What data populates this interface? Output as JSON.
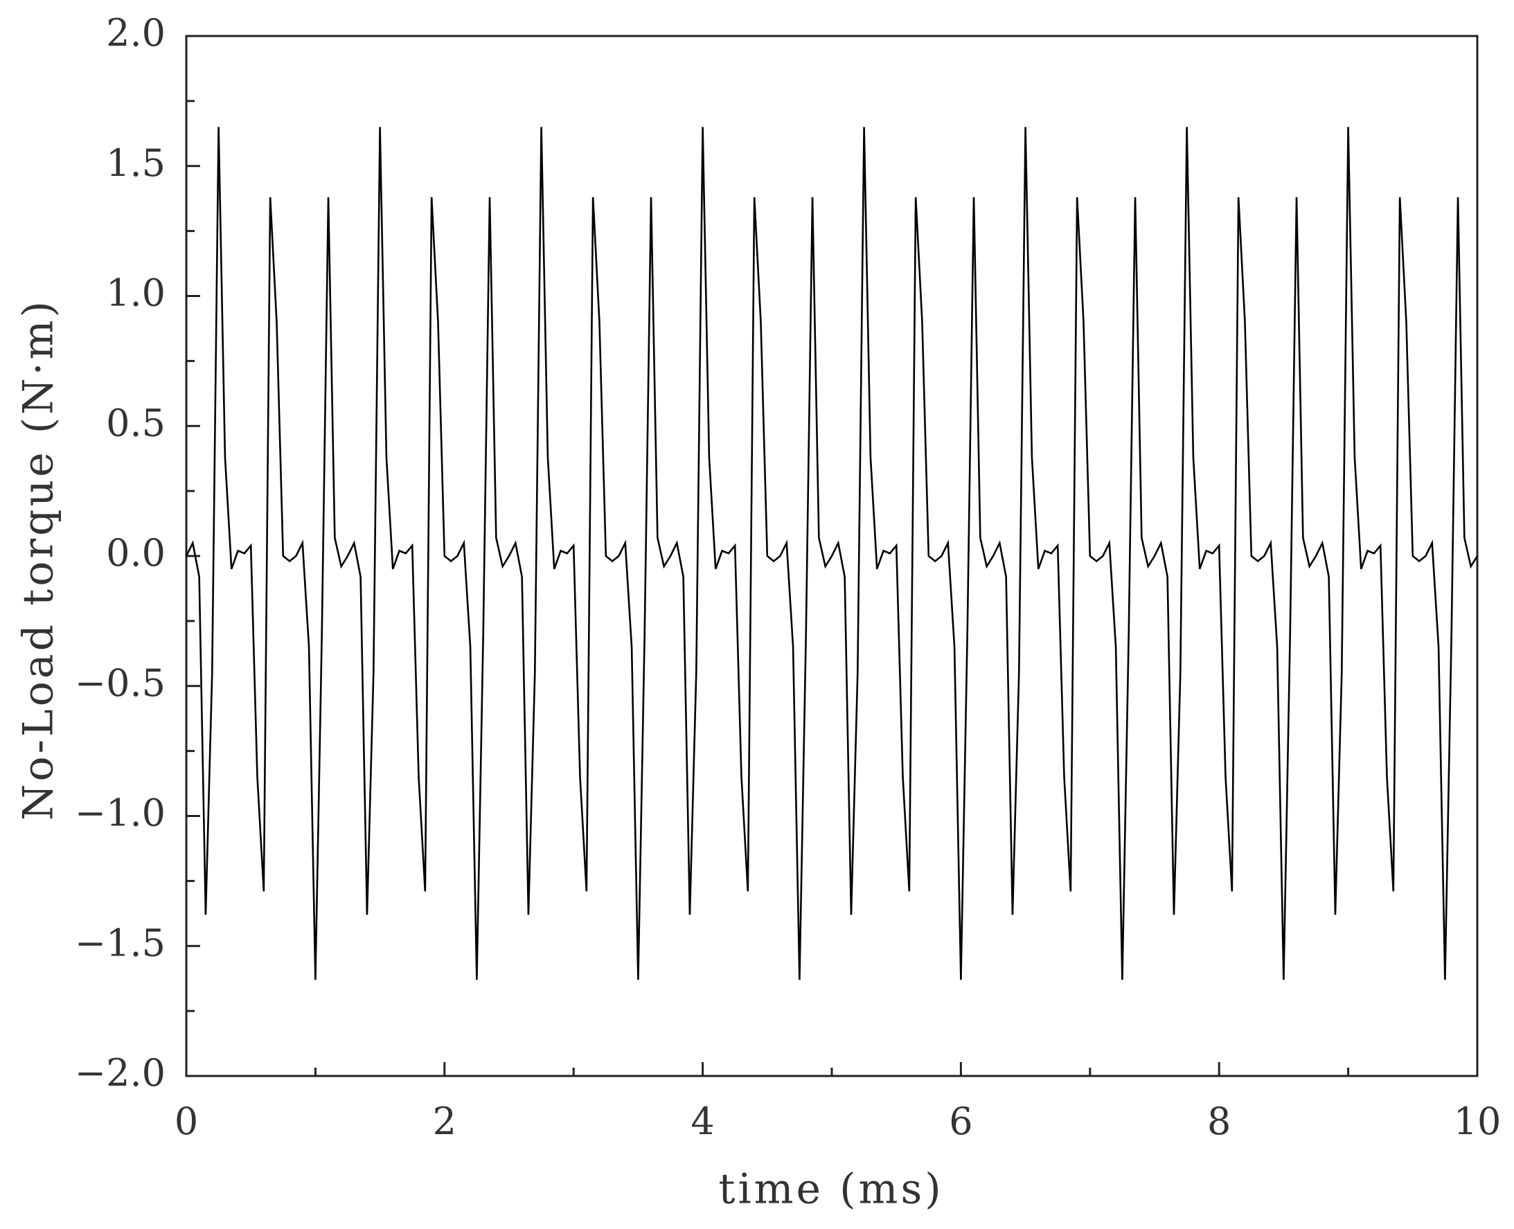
{
  "chart_data": {
    "type": "line",
    "xlabel": "time (ms)",
    "ylabel": "No-Load torque (N·m)",
    "color": "#000000",
    "xlim": [
      0,
      10
    ],
    "ylim": [
      -2.0,
      2.0
    ],
    "xticks": [
      0,
      2,
      4,
      6,
      8,
      10
    ],
    "xminorticks": [
      1,
      3,
      5,
      7,
      9
    ],
    "yticks": [
      {
        "value": -2.0,
        "label": "−2.0"
      },
      {
        "value": -1.5,
        "label": "−1.5"
      },
      {
        "value": -1.0,
        "label": "−1.0"
      },
      {
        "value": -0.5,
        "label": "−0.5"
      },
      {
        "value": 0,
        "label": "0.0"
      },
      {
        "value": 0.5,
        "label": "0.5"
      },
      {
        "value": 1.0,
        "label": "1.0"
      },
      {
        "value": 1.5,
        "label": "1.5"
      },
      {
        "value": 2.0,
        "label": "2.0"
      }
    ],
    "yminorticks": [
      -1.75,
      -1.25,
      -0.75,
      -0.25,
      0.25,
      0.75,
      1.25,
      1.75
    ],
    "x": [
      0,
      0.05,
      0.1,
      0.15,
      0.2,
      0.25,
      0.3,
      0.35,
      0.4,
      0.45,
      0.5,
      0.55,
      0.6,
      0.65,
      0.7,
      0.75,
      0.8,
      0.85,
      0.9,
      0.95,
      1,
      1.05,
      1.1,
      1.15,
      1.2,
      1.25,
      1.3,
      1.35,
      1.4,
      1.45,
      1.5,
      1.55,
      1.6,
      1.65,
      1.7,
      1.75,
      1.8,
      1.85,
      1.9,
      1.95,
      2,
      2.05,
      2.1,
      2.15,
      2.2,
      2.25,
      2.3,
      2.35,
      2.4,
      2.45,
      2.5,
      2.55,
      2.6,
      2.65,
      2.7,
      2.75,
      2.8,
      2.85,
      2.9,
      2.95,
      3,
      3.05,
      3.1,
      3.15,
      3.2,
      3.25,
      3.3,
      3.35,
      3.4,
      3.45,
      3.5,
      3.55,
      3.6,
      3.65,
      3.7,
      3.75,
      3.8,
      3.85,
      3.9,
      3.95,
      4,
      4.05,
      4.1,
      4.15,
      4.2,
      4.25,
      4.3,
      4.35,
      4.4,
      4.45,
      4.5,
      4.55,
      4.6,
      4.65,
      4.7,
      4.75,
      4.8,
      4.85,
      4.9,
      4.95,
      5,
      5.05,
      5.1,
      5.15,
      5.2,
      5.25,
      5.3,
      5.35,
      5.4,
      5.45,
      5.5,
      5.55,
      5.6,
      5.65,
      5.7,
      5.75,
      5.8,
      5.85,
      5.9,
      5.95,
      6,
      6.05,
      6.1,
      6.15,
      6.2,
      6.25,
      6.3,
      6.35,
      6.4,
      6.45,
      6.5,
      6.55,
      6.6,
      6.65,
      6.7,
      6.75,
      6.8,
      6.85,
      6.9,
      6.95,
      7,
      7.05,
      7.1,
      7.15,
      7.2,
      7.25,
      7.3,
      7.35,
      7.4,
      7.45,
      7.5,
      7.55,
      7.6,
      7.65,
      7.7,
      7.75,
      7.8,
      7.85,
      7.9,
      7.95,
      8,
      8.05,
      8.1,
      8.15,
      8.2,
      8.25,
      8.3,
      8.35,
      8.4,
      8.45,
      8.5,
      8.55,
      8.6,
      8.65,
      8.7,
      8.75,
      8.8,
      8.85,
      8.9,
      8.95,
      9,
      9.05,
      9.1,
      9.15,
      9.2,
      9.25,
      9.3,
      9.35,
      9.4,
      9.45,
      9.5,
      9.55,
      9.6,
      9.65,
      9.7,
      9.75,
      9.8,
      9.85,
      9.9,
      9.95,
      10
    ],
    "values": [
      0,
      0.05,
      -0.08,
      -1.38,
      -0.45,
      1.65,
      0.38,
      -0.05,
      0.02,
      0.01,
      0.04,
      -0.85,
      -1.29,
      1.38,
      0.9,
      0,
      -0.02,
      0,
      0.05,
      -0.35,
      -1.63,
      -0.3,
      1.38,
      0.07,
      -0.04,
      0,
      0.05,
      -0.08,
      -1.38,
      -0.45,
      1.65,
      0.38,
      -0.05,
      0.02,
      0.01,
      0.04,
      -0.85,
      -1.29,
      1.38,
      0.9,
      0,
      -0.02,
      0,
      0.05,
      -0.35,
      -1.63,
      -0.3,
      1.38,
      0.07,
      -0.04,
      0,
      0.05,
      -0.08,
      -1.38,
      -0.45,
      1.65,
      0.38,
      -0.05,
      0.02,
      0.01,
      0.04,
      -0.85,
      -1.29,
      1.38,
      0.9,
      0,
      -0.02,
      0,
      0.05,
      -0.35,
      -1.63,
      -0.3,
      1.38,
      0.07,
      -0.04,
      0,
      0.05,
      -0.08,
      -1.38,
      -0.45,
      1.65,
      0.38,
      -0.05,
      0.02,
      0.01,
      0.04,
      -0.85,
      -1.29,
      1.38,
      0.9,
      0,
      -0.02,
      0,
      0.05,
      -0.35,
      -1.63,
      -0.3,
      1.38,
      0.07,
      -0.04,
      0,
      0.05,
      -0.08,
      -1.38,
      -0.45,
      1.65,
      0.38,
      -0.05,
      0.02,
      0.01,
      0.04,
      -0.85,
      -1.29,
      1.38,
      0.9,
      0,
      -0.02,
      0,
      0.05,
      -0.35,
      -1.63,
      -0.3,
      1.38,
      0.07,
      -0.04,
      0,
      0.05,
      -0.08,
      -1.38,
      -0.45,
      1.65,
      0.38,
      -0.05,
      0.02,
      0.01,
      0.04,
      -0.85,
      -1.29,
      1.38,
      0.9,
      0,
      -0.02,
      0,
      0.05,
      -0.35,
      -1.63,
      -0.3,
      1.38,
      0.07,
      -0.04,
      0,
      0.05,
      -0.08,
      -1.38,
      -0.45,
      1.65,
      0.38,
      -0.05,
      0.02,
      0.01,
      0.04,
      -0.85,
      -1.29,
      1.38,
      0.9,
      0,
      -0.02,
      0,
      0.05,
      -0.35,
      -1.63,
      -0.3,
      1.38,
      0.07,
      -0.04,
      0,
      0.05,
      -0.08,
      -1.38,
      -0.45,
      1.65,
      0.38,
      -0.05,
      0.02,
      0.01,
      0.04,
      -0.85,
      -1.29,
      1.38,
      0.9,
      0,
      -0.02,
      0,
      0.05,
      -0.35,
      -1.63,
      -0.3,
      1.38,
      0.07,
      -0.04,
      0
    ]
  }
}
